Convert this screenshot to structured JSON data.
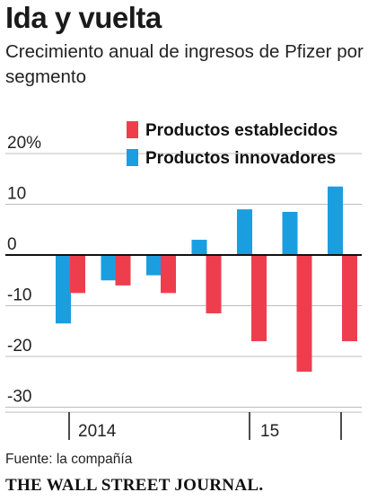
{
  "header": {
    "title": "Ida y vuelta",
    "subtitle": "Crecimiento anual de ingresos de Pfizer por segmento"
  },
  "chart_data": {
    "type": "bar",
    "ytick_labels": [
      "20%",
      "10",
      "0",
      "-10",
      "-20",
      "-30"
    ],
    "ytick_values": [
      20,
      10,
      0,
      -10,
      -20,
      -30
    ],
    "ylim": [
      -31,
      21
    ],
    "x_group_labels": [
      "2014",
      "15"
    ],
    "colors": {
      "innovadores": "#1a9ee0",
      "establecidos": "#ee3e4e",
      "grid": "#bdbdbd",
      "axis": "#111111"
    },
    "series": [
      {
        "name": "Productos establecidos",
        "key": "establecidos",
        "values": [
          -7.5,
          -6,
          -7.5,
          -11.5,
          -17,
          -23,
          -17
        ]
      },
      {
        "name": "Productos innovadores",
        "key": "innovadores",
        "values": [
          -13.5,
          -5,
          -4,
          3,
          9,
          8.5,
          13.5
        ]
      }
    ],
    "legend_order": [
      "establecidos",
      "innovadores"
    ],
    "legend_position": "top-right",
    "grid": true
  },
  "footer": {
    "source": "Fuente: la compañía",
    "publisher": "THE WALL STREET JOURNAL."
  }
}
